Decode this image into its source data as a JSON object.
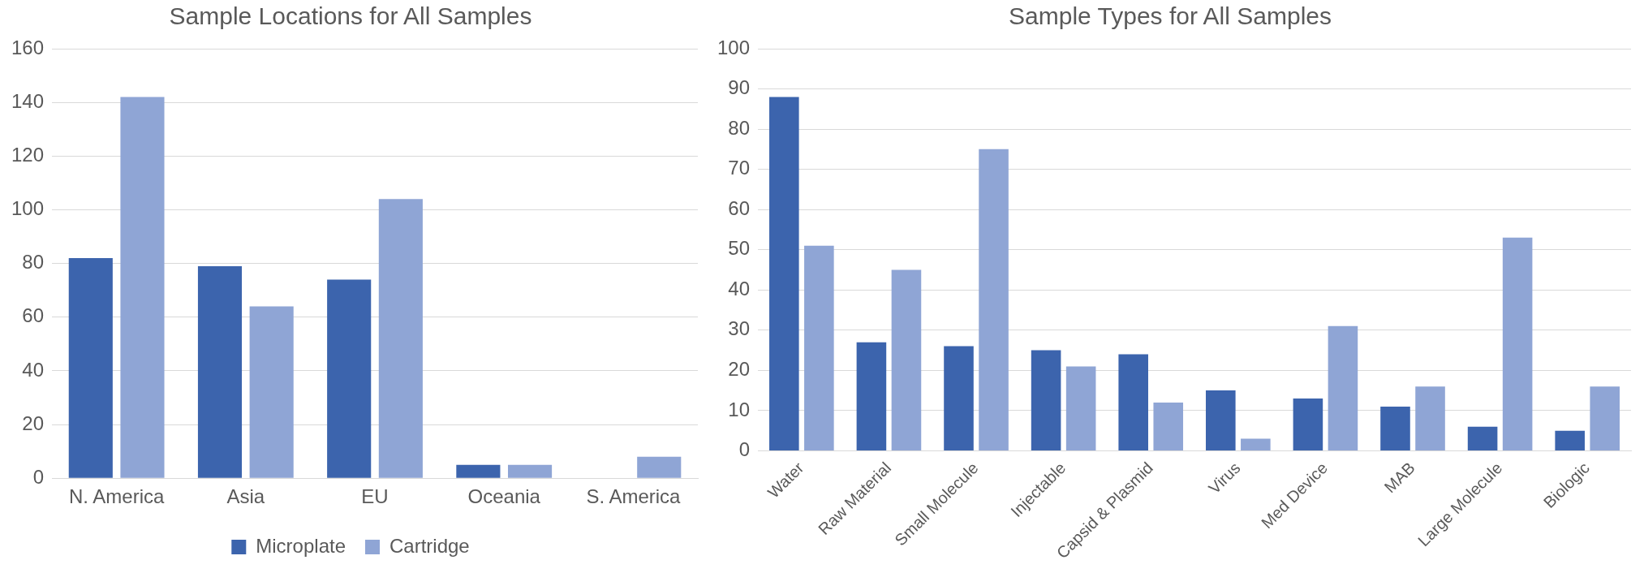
{
  "chart_data": [
    {
      "type": "bar",
      "title": "Sample Locations for All Samples",
      "categories": [
        "N. America",
        "Asia",
        "EU",
        "Oceania",
        "S. America"
      ],
      "series": [
        {
          "name": "Microplate",
          "color": "#3c64ad",
          "values": [
            82,
            79,
            74,
            5,
            null
          ]
        },
        {
          "name": "Cartridge",
          "color": "#8fa5d5",
          "values": [
            142,
            64,
            104,
            5,
            8
          ]
        }
      ],
      "ylim": [
        0,
        160
      ],
      "yticks": [
        0,
        20,
        40,
        60,
        80,
        100,
        120,
        140,
        160
      ],
      "grid": "y",
      "legend": "bottom"
    },
    {
      "type": "bar",
      "title": "Sample Types for All Samples",
      "categories": [
        "Water",
        "Raw Material",
        "Small Molecule",
        "Injectable",
        "Capsid & Plasmid",
        "Virus",
        "Med Device",
        "MAB",
        "Large Molecule",
        "Biologic"
      ],
      "series": [
        {
          "color": "#3c64ad",
          "values": [
            88,
            27,
            26,
            25,
            24,
            15,
            13,
            11,
            6,
            5
          ]
        },
        {
          "color": "#8fa5d5",
          "values": [
            51,
            45,
            75,
            21,
            12,
            3,
            31,
            16,
            53,
            16
          ]
        }
      ],
      "ylim": [
        0,
        100
      ],
      "yticks": [
        0,
        10,
        20,
        30,
        40,
        50,
        60,
        70,
        80,
        90,
        100
      ],
      "grid": "y"
    }
  ]
}
